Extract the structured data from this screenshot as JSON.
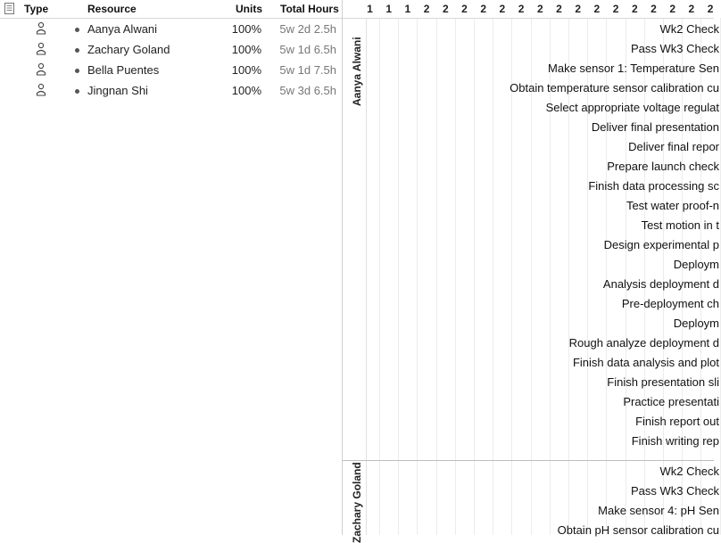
{
  "columns": {
    "type": "Type",
    "resource": "Resource",
    "units": "Units",
    "total_hours": "Total Hours"
  },
  "resources": [
    {
      "name": "Aanya Alwani",
      "units": "100%",
      "hours": "5w 2d 2.5h"
    },
    {
      "name": "Zachary Goland",
      "units": "100%",
      "hours": "5w 1d 6.5h"
    },
    {
      "name": "Bella Puentes",
      "units": "100%",
      "hours": "5w 1d 7.5h"
    },
    {
      "name": "Jingnan Shi",
      "units": "100%",
      "hours": "5w 3d 6.5h"
    }
  ],
  "gantt": {
    "header_digits": [
      "1",
      "1",
      "1",
      "2",
      "2",
      "2",
      "2",
      "2",
      "2",
      "2",
      "2",
      "2",
      "2",
      "2",
      "2",
      "2",
      "2",
      "2",
      "2"
    ],
    "groups": [
      {
        "label": "Aanya Alwani",
        "tasks": [
          "Wk2 Check",
          "Pass Wk3 Check",
          "Make sensor 1: Temperature Sen",
          "Obtain temperature sensor calibration cu",
          "Select appropriate voltage regulat",
          "Deliver final presentation",
          "Deliver final repor",
          "Prepare launch check",
          "Finish data processing sc",
          "Test water proof-n",
          "Test motion in t",
          "Design experimental p",
          "Deploym",
          "Analysis deployment d",
          "Pre-deployment ch",
          "Deploym",
          "Rough analyze deployment d",
          "Finish data analysis and plot",
          "Finish presentation sli",
          "Practice presentati",
          "Finish report out",
          "Finish writing rep"
        ]
      },
      {
        "label": "Zachary Goland",
        "tasks": [
          "Wk2 Check",
          "Pass Wk3 Check",
          "Make sensor 4: pH Sen",
          "Obtain pH sensor calibration cu"
        ]
      }
    ]
  }
}
